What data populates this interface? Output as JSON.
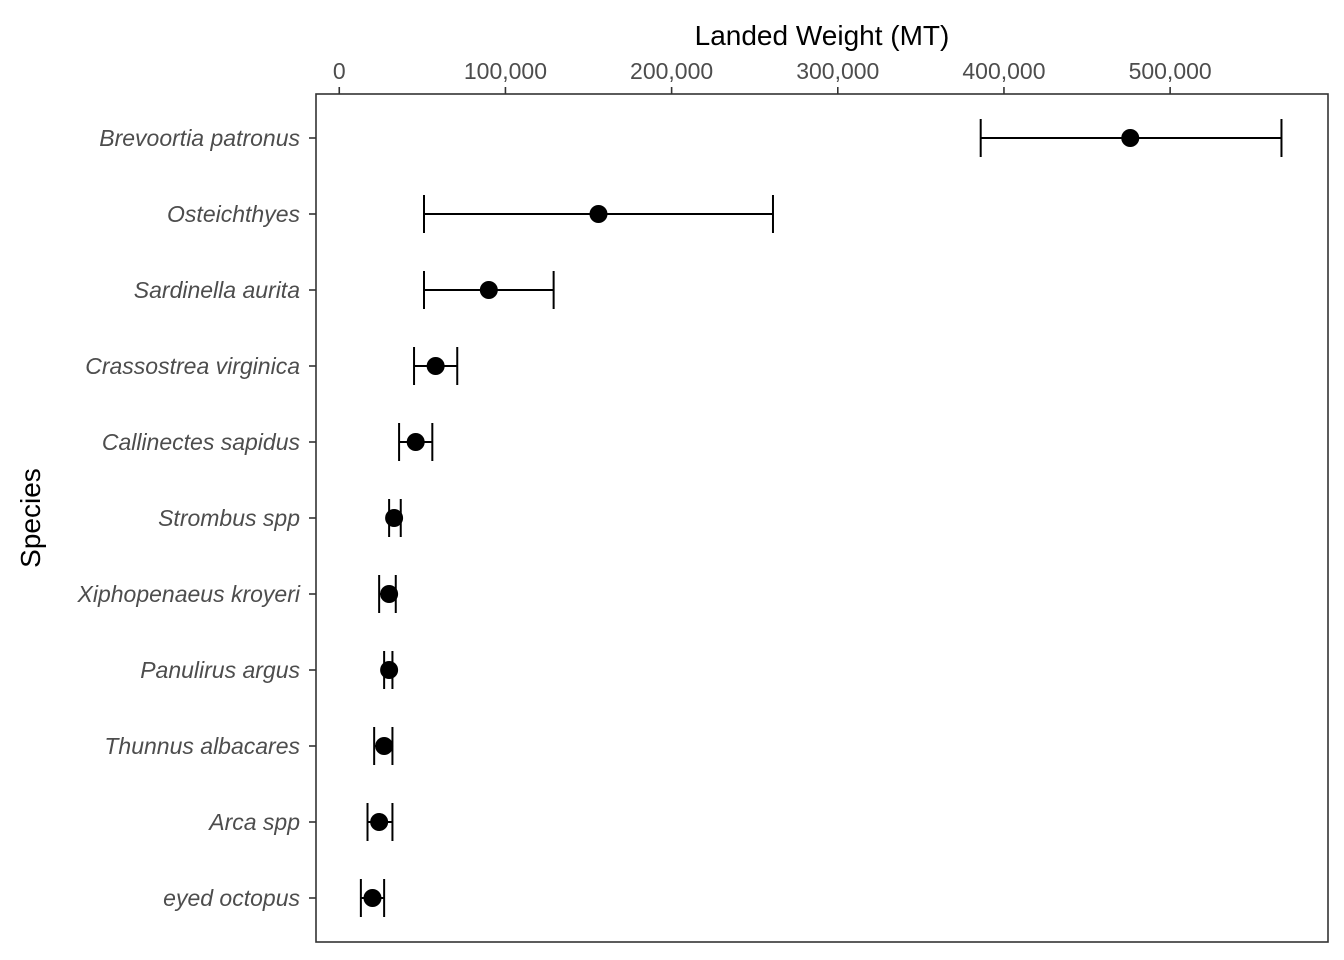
{
  "chart_data": {
    "type": "scatter",
    "subtype": "dot-with-horizontal-error-bars",
    "title": "",
    "xlabel": "Landed Weight (MT)",
    "ylabel": "Species",
    "x_axis_position": "top",
    "xlim": [
      -14000,
      595000
    ],
    "x_ticks": [
      {
        "value": 0,
        "label": "0"
      },
      {
        "value": 100000,
        "label": "100,000"
      },
      {
        "value": 200000,
        "label": "200,000"
      },
      {
        "value": 300000,
        "label": "300,000"
      },
      {
        "value": 400000,
        "label": "400,000"
      },
      {
        "value": 500000,
        "label": "500,000"
      }
    ],
    "grid": false,
    "legend": "none",
    "colors": {
      "points": "#000000",
      "error_bars": "#000000",
      "panel_border": "#333333",
      "tick_text": "#4d4d4d"
    },
    "series": [
      {
        "points": [
          {
            "species": "Brevoortia patronus",
            "value": 476000,
            "low": 386000,
            "high": 567000
          },
          {
            "species": "Osteichthyes",
            "value": 156000,
            "low": 51000,
            "high": 261000
          },
          {
            "species": "Sardinella aurita",
            "value": 90000,
            "low": 51000,
            "high": 129000
          },
          {
            "species": "Crassostrea virginica",
            "value": 58000,
            "low": 45000,
            "high": 71000
          },
          {
            "species": "Callinectes sapidus",
            "value": 46000,
            "low": 36000,
            "high": 56000
          },
          {
            "species": "Strombus spp",
            "value": 33000,
            "low": 30000,
            "high": 37000
          },
          {
            "species": "Xiphopenaeus kroyeri",
            "value": 30000,
            "low": 24000,
            "high": 34000
          },
          {
            "species": "Panulirus argus",
            "value": 30000,
            "low": 27000,
            "high": 32000
          },
          {
            "species": "Thunnus albacares",
            "value": 27000,
            "low": 21000,
            "high": 32000
          },
          {
            "species": "Arca spp",
            "value": 24000,
            "low": 17000,
            "high": 32000
          },
          {
            "species": "eyed octopus",
            "value": 20000,
            "low": 13000,
            "high": 27000
          }
        ]
      }
    ]
  }
}
